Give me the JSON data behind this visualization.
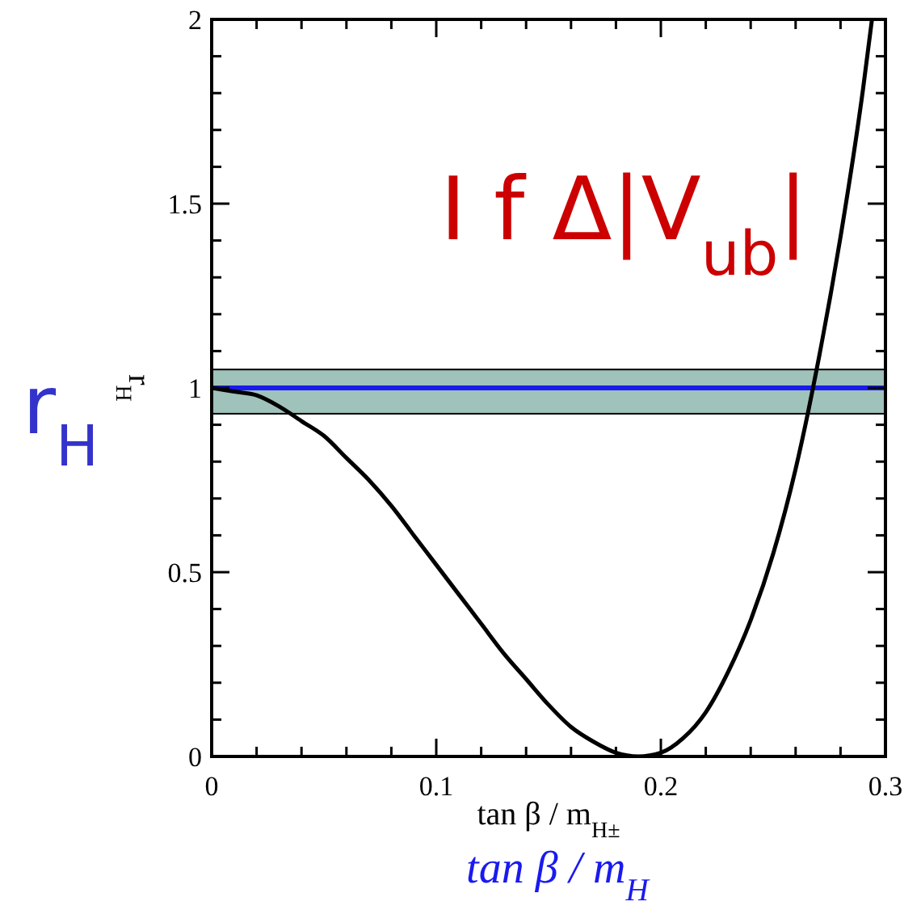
{
  "chart_data": {
    "type": "line",
    "xlabel": "tan β / m$_{H±}$",
    "ylabel": "r$_{H}$",
    "x": [
      0,
      0.01,
      0.02,
      0.03,
      0.04,
      0.05,
      0.06,
      0.07,
      0.08,
      0.09,
      0.1,
      0.11,
      0.12,
      0.13,
      0.14,
      0.15,
      0.16,
      0.17,
      0.18,
      0.19,
      0.2,
      0.21,
      0.22,
      0.23,
      0.24,
      0.25,
      0.26,
      0.27,
      0.28,
      0.29,
      0.294
    ],
    "series": [
      {
        "color": "#000000",
        "values": [
          1,
          0.99,
          0.98,
          0.95,
          0.91,
          0.87,
          0.81,
          0.75,
          0.68,
          0.6,
          0.52,
          0.44,
          0.36,
          0.28,
          0.21,
          0.14,
          0.08,
          0.04,
          0.01,
          0,
          0.01,
          0.05,
          0.12,
          0.23,
          0.37,
          0.55,
          0.78,
          1.07,
          1.41,
          1.81,
          2
        ]
      }
    ],
    "xlim": [
      0,
      0.3
    ],
    "ylim": [
      0,
      2
    ],
    "xticks": [
      0,
      {
        "value": 0.02,
        "label": null
      },
      {
        "value": 0.04,
        "label": null
      },
      {
        "value": 0.06,
        "label": null
      },
      {
        "value": 0.08,
        "label": null
      },
      0.1,
      {
        "value": 0.12,
        "label": null
      },
      {
        "value": 0.14,
        "label": null
      },
      {
        "value": 0.16,
        "label": null
      },
      {
        "value": 0.18,
        "label": null
      },
      0.2,
      {
        "value": 0.22,
        "label": null
      },
      {
        "value": 0.24,
        "label": null
      },
      {
        "value": 0.26,
        "label": null
      },
      {
        "value": 0.28,
        "label": null
      },
      0.3
    ],
    "yticks": [
      0,
      {
        "value": 0.1,
        "label": null
      },
      {
        "value": 0.2,
        "label": null
      },
      {
        "value": 0.3,
        "label": null
      },
      {
        "value": 0.4,
        "label": null
      },
      0.5,
      {
        "value": 0.6,
        "label": null
      },
      {
        "value": 0.7,
        "label": null
      },
      {
        "value": 0.8,
        "label": null
      },
      {
        "value": 0.9,
        "label": null
      },
      1,
      {
        "value": 1.1,
        "label": null
      },
      {
        "value": 1.2,
        "label": null
      },
      {
        "value": 1.3,
        "label": null
      },
      {
        "value": 1.4,
        "label": null
      },
      1.5,
      {
        "value": 1.6,
        "label": null
      },
      {
        "value": 1.7,
        "label": null
      },
      {
        "value": 1.8,
        "label": null
      },
      {
        "value": 1.9,
        "label": null
      },
      2
    ],
    "ref_lines": [
      {
        "axis": "y",
        "value": 1,
        "color": "#1a1aee"
      }
    ],
    "bands": [
      {
        "axis": "y",
        "from": 0.93,
        "to": 1.05,
        "color": "#9fc2bb"
      }
    ],
    "annotations": [
      "I f Δ|V$_{ub}$|",
      "r$_{H}$",
      "tan β / m$_{H}$"
    ],
    "grid": false,
    "marker": "none",
    "line_style": "solid"
  }
}
